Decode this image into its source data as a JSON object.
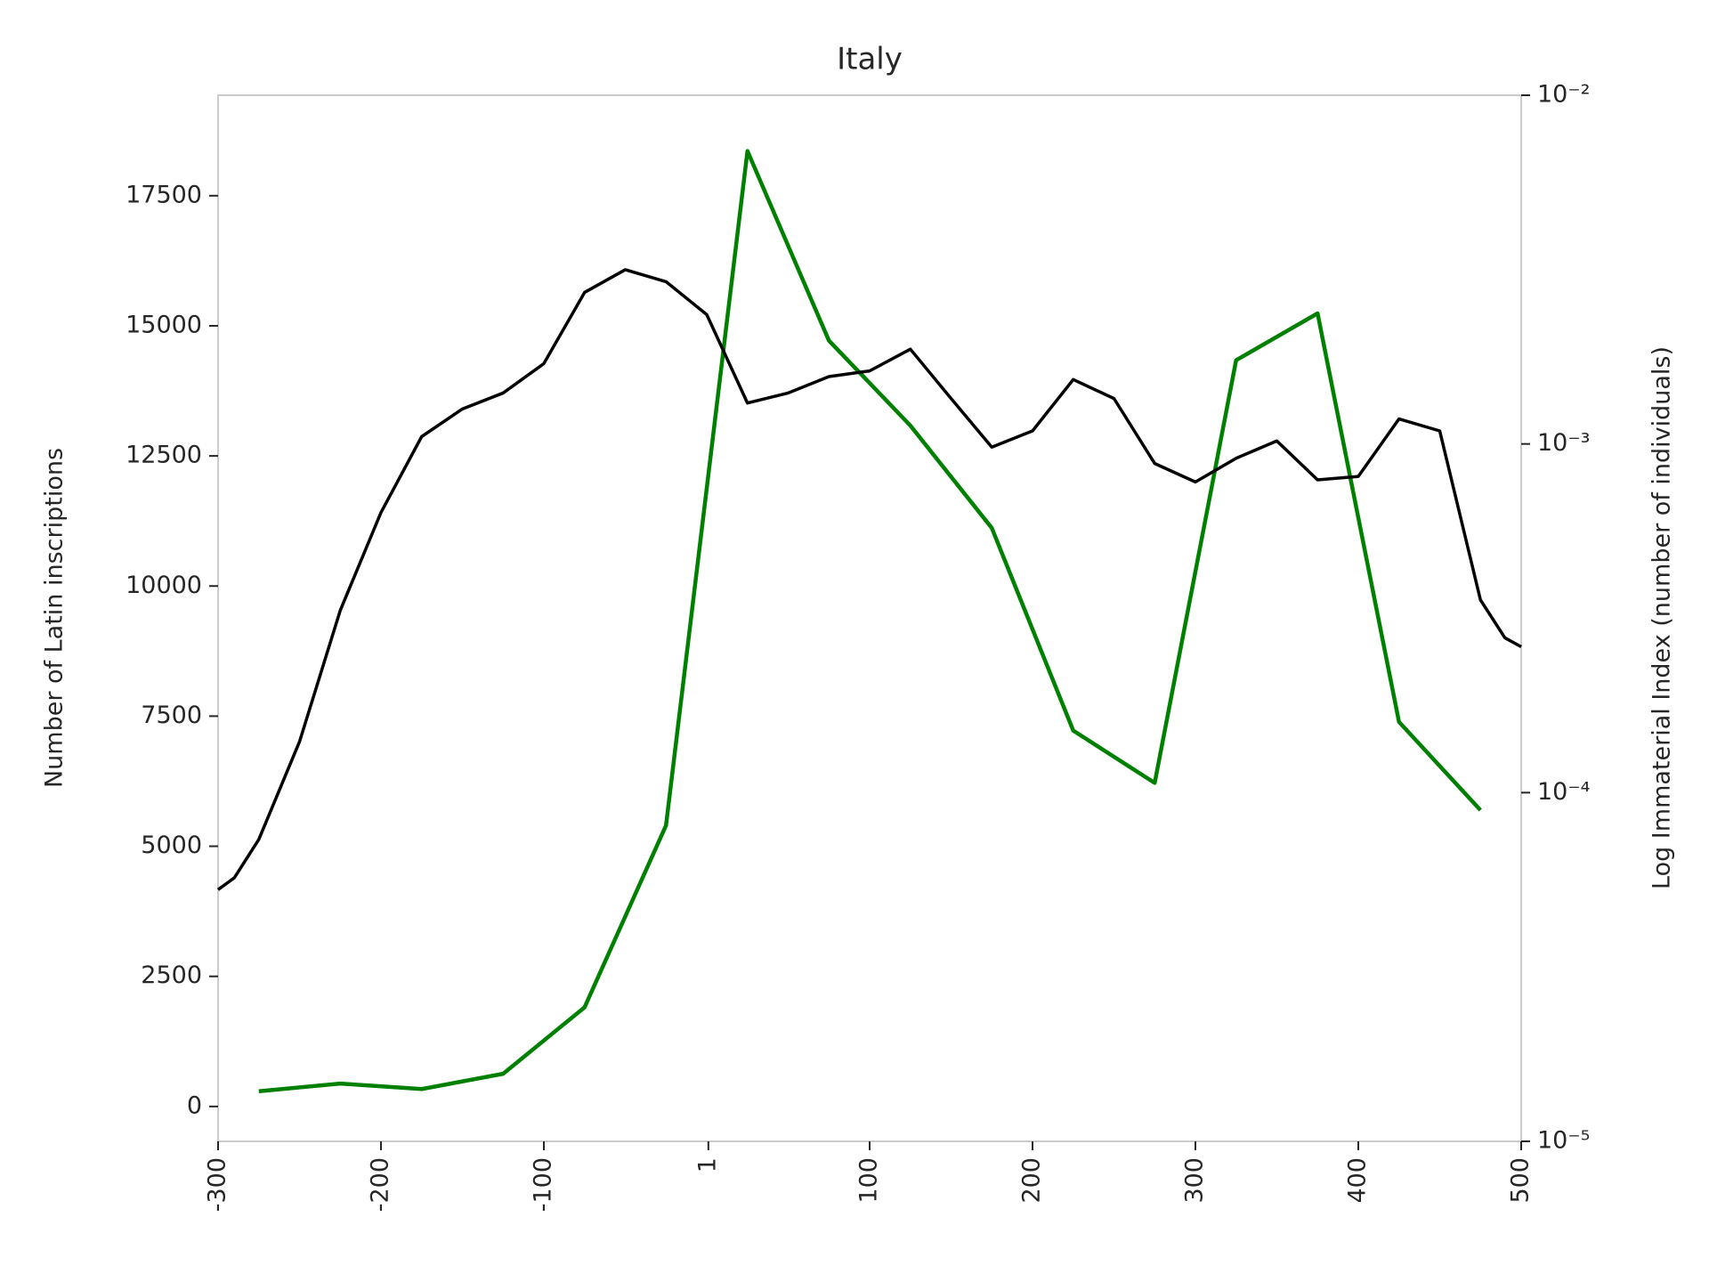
{
  "chart_data": {
    "type": "line",
    "title": "Italy",
    "y_label": "Number of Latin inscriptions",
    "y2_label": "Log Immaterial Index (number of individuals)",
    "xlim": [
      -300,
      500
    ],
    "xticks": [
      -300,
      -200,
      -100,
      1,
      100,
      200,
      300,
      400,
      500
    ],
    "ylim": [
      -670,
      19430
    ],
    "yticks": [
      0,
      2500,
      5000,
      7500,
      10000,
      12500,
      15000,
      17500
    ],
    "y2lim": [
      1e-05,
      0.01
    ],
    "y2_log": true,
    "y2ticks": [
      {
        "value": 1e-05,
        "label": "10⁻⁵"
      },
      {
        "value": 0.0001,
        "label": "10⁻⁴"
      },
      {
        "value": 0.001,
        "label": "10⁻³"
      },
      {
        "value": 0.01,
        "label": "10⁻²"
      }
    ],
    "grid": false,
    "series": [
      {
        "color": "#008000",
        "x": [
          -275,
          -225,
          -175,
          -125,
          -75,
          -25,
          25,
          75,
          125,
          175,
          225,
          275,
          325,
          375,
          425,
          475
        ],
        "values": [
          293,
          440,
          335,
          628,
          1905,
          5400,
          18358,
          14716,
          13083,
          11115,
          7222,
          6217,
          14339,
          15239,
          7389,
          5694
        ]
      },
      {
        "color": "#000000",
        "axis": "y2",
        "x": [
          -300,
          -290,
          -275,
          -250,
          -225,
          -200,
          -175,
          -150,
          -125,
          -100,
          -75,
          -50,
          -25,
          0,
          25,
          50,
          75,
          100,
          125,
          150,
          175,
          200,
          225,
          250,
          275,
          300,
          325,
          350,
          375,
          400,
          425,
          450,
          475,
          490,
          500
        ],
        "values": [
          5.27e-05,
          5.7e-05,
          7.34e-05,
          0.00014,
          0.000333,
          0.000636,
          0.00105,
          0.00126,
          0.0014,
          0.0017,
          0.00272,
          0.00316,
          0.00292,
          0.00235,
          0.00131,
          0.0014,
          0.00156,
          0.00162,
          0.00187,
          0.00135,
          0.000979,
          0.00109,
          0.00153,
          0.00135,
          0.000879,
          0.000778,
          0.00091,
          0.00102,
          0.000789,
          0.000807,
          0.00118,
          0.00109,
          0.000357,
          0.000278,
          0.000262
        ]
      }
    ]
  }
}
